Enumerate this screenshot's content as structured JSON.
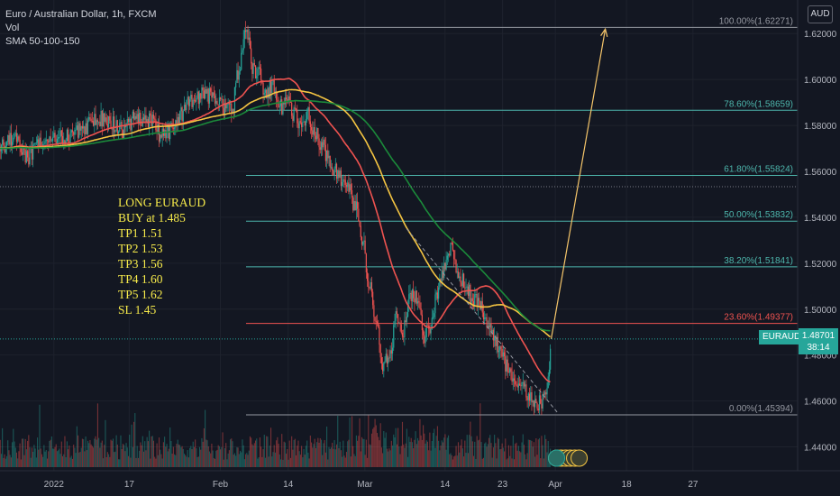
{
  "legend": {
    "title": "Euro / Australian Dollar, 1h, FXCM",
    "vol": "Vol",
    "sma": "SMA 50-100-150"
  },
  "trade_notes": [
    "LONG EURAUD",
    "BUY at 1.485",
    "TP1 1.51",
    "TP2 1.53",
    "TP3 1.56",
    "TP4 1.60",
    "TP5 1.62",
    "SL 1.45"
  ],
  "axis_currency": "AUD",
  "current": {
    "symbol": "EURAUD",
    "price": "1.48701",
    "countdown": "38:14",
    "value": 1.48701
  },
  "colors": {
    "up": "#26a69a",
    "down": "#ef5350",
    "sma50": "#ef5350",
    "sma100": "#f5c542",
    "sma150": "#1b8a3a",
    "fib_red": "#ef5350",
    "fib_teal": "#4db6ac",
    "fib_gray": "#9598a1",
    "projection": "#f5c56a",
    "trend": "#9598a1"
  },
  "chart_data": {
    "type": "line",
    "y_axis": {
      "range": [
        1.4296,
        1.6307
      ],
      "ticks": [
        "1.44000",
        "1.46000",
        "1.48000",
        "1.50000",
        "1.52000",
        "1.54000",
        "1.56000",
        "1.58000",
        "1.60000",
        "1.62000"
      ],
      "tick_values": [
        1.44,
        1.46,
        1.48,
        1.5,
        1.52,
        1.54,
        1.56,
        1.58,
        1.6,
        1.62
      ]
    },
    "x_axis": {
      "ticks": [
        "2022",
        "17",
        "Feb",
        "14",
        "Mar",
        "14",
        "23",
        "Apr",
        "18",
        "27"
      ],
      "tick_index": [
        8,
        19,
        32.3,
        42.2,
        53.4,
        65.1,
        73.5,
        81.2,
        91.6,
        101.3
      ]
    },
    "fibonacci": [
      {
        "label": "100.00%(1.62271)",
        "value": 1.62271,
        "color": "gray"
      },
      {
        "label": "78.60%(1.58659)",
        "value": 1.58659,
        "color": "teal"
      },
      {
        "label": "61.80%(1.55824)",
        "value": 1.55824,
        "color": "teal"
      },
      {
        "label": "50.00%(1.53832)",
        "value": 1.53832,
        "color": "teal"
      },
      {
        "label": "38.20%(1.51841)",
        "value": 1.51841,
        "color": "teal"
      },
      {
        "label": "23.60%(1.49377)",
        "value": 1.49377,
        "color": "red"
      },
      {
        "label": "0.00%(1.45394)",
        "value": 1.45394,
        "color": "gray"
      }
    ],
    "dotted_level": 1.5533,
    "price_anchors": [
      [
        0,
        1.57
      ],
      [
        2,
        1.575
      ],
      [
        4,
        1.566
      ],
      [
        6,
        1.571
      ],
      [
        9,
        1.575
      ],
      [
        12,
        1.578
      ],
      [
        14,
        1.583
      ],
      [
        16,
        1.582
      ],
      [
        18,
        1.578
      ],
      [
        20,
        1.583
      ],
      [
        22,
        1.582
      ],
      [
        24,
        1.575
      ],
      [
        26,
        1.583
      ],
      [
        28,
        1.59
      ],
      [
        30,
        1.594
      ],
      [
        32,
        1.589
      ],
      [
        34,
        1.587
      ],
      [
        35,
        1.604
      ],
      [
        36,
        1.623
      ],
      [
        37,
        1.605
      ],
      [
        38,
        1.602
      ],
      [
        39,
        1.593
      ],
      [
        40,
        1.599
      ],
      [
        41,
        1.588
      ],
      [
        42,
        1.59
      ],
      [
        43,
        1.585
      ],
      [
        44,
        1.579
      ],
      [
        45,
        1.585
      ],
      [
        46,
        1.577
      ],
      [
        47,
        1.572
      ],
      [
        48,
        1.566
      ],
      [
        49,
        1.56
      ],
      [
        50,
        1.557
      ],
      [
        51,
        1.552
      ],
      [
        52,
        1.545
      ],
      [
        53,
        1.53
      ],
      [
        54,
        1.512
      ],
      [
        55,
        1.495
      ],
      [
        56,
        1.476
      ],
      [
        57,
        1.478
      ],
      [
        58,
        1.498
      ],
      [
        59,
        1.491
      ],
      [
        60,
        1.505
      ],
      [
        61,
        1.506
      ],
      [
        62,
        1.488
      ],
      [
        63,
        1.492
      ],
      [
        64,
        1.508
      ],
      [
        65,
        1.517
      ],
      [
        66,
        1.528
      ],
      [
        67,
        1.515
      ],
      [
        68,
        1.512
      ],
      [
        69,
        1.505
      ],
      [
        70,
        1.503
      ],
      [
        71,
        1.494
      ],
      [
        72,
        1.49
      ],
      [
        73,
        1.482
      ],
      [
        74,
        1.476
      ],
      [
        75,
        1.472
      ],
      [
        76,
        1.466
      ],
      [
        77,
        1.464
      ],
      [
        78,
        1.46
      ],
      [
        79,
        1.459
      ],
      [
        80,
        1.464
      ],
      [
        80.6,
        1.487
      ]
    ],
    "projection": {
      "from": [
        80.6,
        1.487
      ],
      "to": [
        88.5,
        1.622
      ]
    },
    "trendline": {
      "from": [
        59.5,
        1.535
      ],
      "to": [
        81.5,
        1.455
      ]
    },
    "sma_periods": [
      50,
      100,
      150
    ],
    "series": [
      {
        "name": "SMA 50"
      },
      {
        "name": "SMA 100"
      },
      {
        "name": "SMA 150"
      }
    ]
  }
}
